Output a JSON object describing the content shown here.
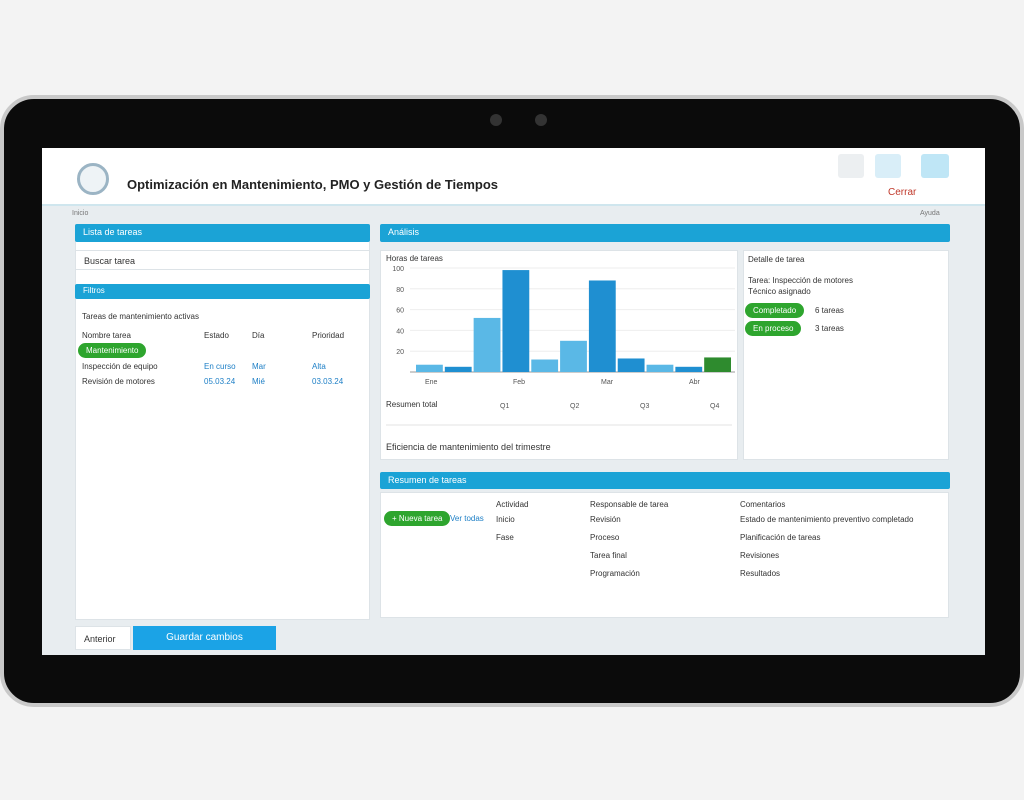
{
  "header": {
    "title": "Optimización en Mantenimiento, PMO y Gestión de Tiempos",
    "close": "Cerrar"
  },
  "breadcrumb": {
    "left": "Inicio",
    "right": "Ayuda"
  },
  "left_panel": {
    "title": "Lista de tareas",
    "search": "Buscar tarea",
    "filter_title": "Filtros",
    "filter_label": "Tareas de mantenimiento activas",
    "columns": [
      "Nombre tarea",
      "Estado",
      "Día",
      "Prioridad"
    ],
    "badge": "Mantenimiento",
    "rows": [
      [
        "Inspección de equipo",
        "En curso",
        "Mar",
        "Alta"
      ],
      [
        "Revisión de motores",
        "05.03.24",
        "Mié",
        "03.03.24"
      ]
    ]
  },
  "main_bar": {
    "title": "Análisis"
  },
  "chart": {
    "type": "bar",
    "title": "Horas de tareas",
    "values": [
      7,
      5,
      52,
      98,
      12,
      30,
      88,
      13,
      7,
      5,
      14
    ],
    "colors": [
      "#5ab8e6",
      "#1f8fd1",
      "#5ab8e6",
      "#1f8fd1",
      "#5ab8e6",
      "#5ab8e6",
      "#1f8fd1",
      "#1f8fd1",
      "#5ab8e6",
      "#1f8fd1",
      "#2e8b2e"
    ],
    "ylim": [
      0,
      100
    ],
    "yticks": [
      20,
      40,
      60,
      80,
      100
    ],
    "x_labels": [
      "Ene",
      "Feb",
      "Mar",
      "Abr"
    ],
    "summary": "Resumen total",
    "range": [
      "Q1",
      "Q2",
      "Q3",
      "Q4"
    ],
    "note": "Eficiencia de mantenimiento del trimestre"
  },
  "detail_panel": {
    "title": "Detalle de tarea",
    "lines": [
      "Tarea: Inspección de motores",
      "Técnico asignado"
    ],
    "pills": [
      "Completado",
      "En proceso"
    ],
    "pill_notes": [
      "6 tareas",
      "3 tareas"
    ]
  },
  "summary_panel": {
    "title": "Resumen de tareas",
    "button": "+ Nueva tarea",
    "link": "Ver todas",
    "columns": [
      "Actividad",
      "Responsable de tarea",
      "Comentarios"
    ],
    "rows": [
      [
        "Inicio",
        "Revisión",
        "Estado de mantenimiento preventivo completado"
      ],
      [
        "Fase",
        "Proceso",
        "Planificación de tareas"
      ],
      [
        "",
        "Tarea final",
        "Revisiones"
      ],
      [
        "",
        "Programación",
        "Resultados"
      ]
    ]
  },
  "footer": {
    "back": "Anterior",
    "save": "Guardar cambios"
  }
}
